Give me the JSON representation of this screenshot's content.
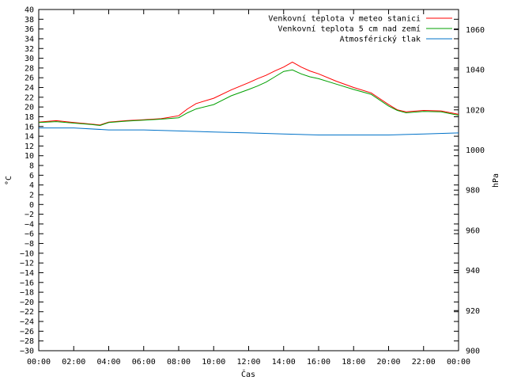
{
  "chart_data": {
    "type": "line",
    "xlabel": "Čas",
    "ylabel_left": "°C",
    "ylabel_right": "hPa",
    "x_ticks": [
      "00:00",
      "02:00",
      "04:00",
      "06:00",
      "08:00",
      "10:00",
      "12:00",
      "14:00",
      "16:00",
      "18:00",
      "20:00",
      "22:00",
      "00:00"
    ],
    "x_range_hours": [
      0,
      24
    ],
    "ylim_left": [
      -30,
      40
    ],
    "ylim_right": [
      900,
      1070
    ],
    "y_ticks_left": [
      -30,
      -28,
      -26,
      -24,
      -22,
      -20,
      -18,
      -16,
      -14,
      -12,
      -10,
      -8,
      -6,
      -4,
      -2,
      0,
      2,
      4,
      6,
      8,
      10,
      12,
      14,
      16,
      18,
      20,
      22,
      24,
      26,
      28,
      30,
      32,
      34,
      36,
      38,
      40
    ],
    "y_ticks_right": [
      900,
      920,
      940,
      960,
      980,
      1000,
      1020,
      1040,
      1060
    ],
    "grid": false,
    "legend_position": "top-right",
    "series": [
      {
        "name": "Venkovní teplota v meteo stanici",
        "color": "#ff0000",
        "axis": "left",
        "x": [
          0,
          1,
          2,
          3,
          3.5,
          4,
          5,
          6,
          7,
          8,
          8.5,
          9,
          10,
          11,
          12,
          12.5,
          13,
          13.5,
          14,
          14.5,
          15,
          15.5,
          16,
          17,
          18,
          19,
          20,
          20.5,
          21,
          22,
          23,
          24
        ],
        "y": [
          16.9,
          17.2,
          16.8,
          16.5,
          16.3,
          16.9,
          17.2,
          17.4,
          17.6,
          18.2,
          19.6,
          20.7,
          21.8,
          23.5,
          25,
          25.8,
          26.5,
          27.4,
          28.2,
          29.2,
          28.2,
          27.4,
          26.8,
          25.3,
          24,
          22.9,
          20.5,
          19.4,
          19,
          19.3,
          19.2,
          18.5
        ]
      },
      {
        "name": "Venkovní teplota 5 cm nad zemí",
        "color": "#00a000",
        "axis": "left",
        "x": [
          0,
          1,
          2,
          3,
          3.5,
          4,
          5,
          6,
          7,
          8,
          8.5,
          9,
          10,
          11,
          12,
          12.5,
          13,
          13.5,
          14,
          14.5,
          15,
          15.5,
          16,
          17,
          18,
          19,
          20,
          20.5,
          21,
          22,
          23,
          24
        ],
        "y": [
          16.8,
          17,
          16.7,
          16.4,
          16.2,
          16.8,
          17.1,
          17.3,
          17.5,
          17.8,
          18.8,
          19.6,
          20.5,
          22.3,
          23.6,
          24.3,
          25.1,
          26.2,
          27.3,
          27.6,
          26.8,
          26.2,
          25.8,
          24.7,
          23.6,
          22.6,
          20.2,
          19.3,
          18.8,
          19.1,
          19,
          18.3
        ]
      },
      {
        "name": "Atmosférický tlak",
        "color": "#0072c8",
        "axis": "right",
        "x": [
          0,
          2,
          4,
          6,
          8,
          10,
          12,
          14,
          16,
          18,
          20,
          22,
          24
        ],
        "y": [
          1011,
          1011,
          1010,
          1010,
          1009.5,
          1009,
          1008.5,
          1008,
          1007.5,
          1007.5,
          1007.5,
          1008,
          1008.5
        ]
      }
    ]
  }
}
